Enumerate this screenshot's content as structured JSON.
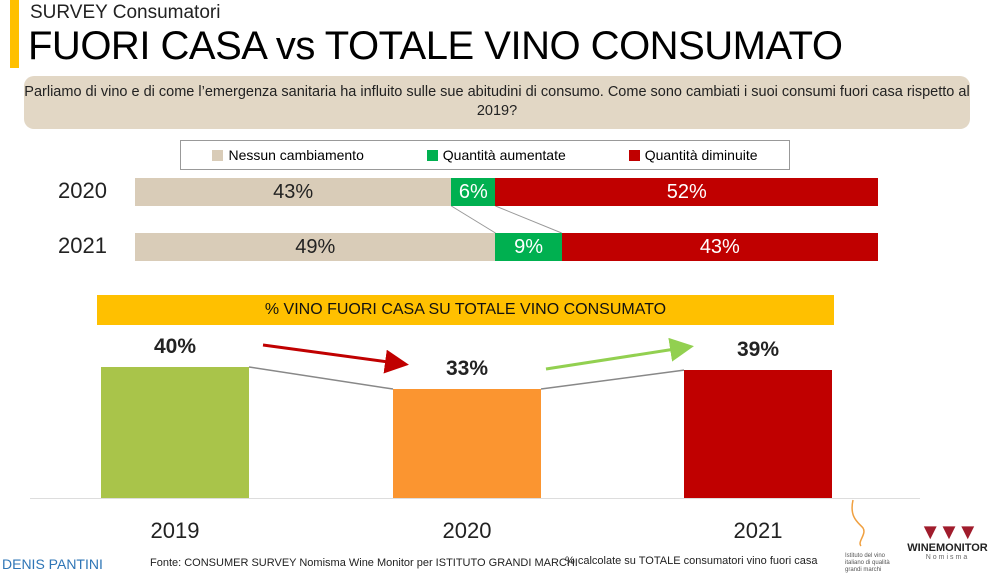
{
  "header": {
    "kicker": "SURVEY Consumatori",
    "title": "FUORI CASA vs TOTALE VINO CONSUMATO"
  },
  "question": "Parliamo di vino e di come l’emergenza sanitaria ha influito sulle sue abitudini di consumo. Come sono cambiati i suoi consumi fuori casa rispetto al 2019?",
  "colors": {
    "nessun": "#d9ccb8",
    "aumentate": "#00b050",
    "diminuite": "#c00000",
    "accent": "#ffc000",
    "b2019": "#a9c44a",
    "b2020": "#fb9530",
    "b2021": "#c00000"
  },
  "chart_data": [
    {
      "type": "bar",
      "orientation": "horizontal-stacked",
      "categories": [
        "2020",
        "2021"
      ],
      "legend_position": "top",
      "series": [
        {
          "name": "Nessun cambiamento",
          "values": [
            43,
            49
          ],
          "labels": [
            "43%",
            "49%"
          ]
        },
        {
          "name": "Quantità aumentate",
          "values": [
            6,
            9
          ],
          "labels": [
            "6%",
            "9%"
          ]
        },
        {
          "name": "Quantità diminuite",
          "values": [
            52,
            43
          ],
          "labels": [
            "52%",
            "43%"
          ]
        }
      ]
    },
    {
      "type": "bar",
      "title": "% VINO FUORI CASA SU TOTALE VINO CONSUMATO",
      "categories": [
        "2019",
        "2020",
        "2021"
      ],
      "values": [
        40,
        33,
        39
      ],
      "labels": [
        "40%",
        "33%",
        "39%"
      ]
    }
  ],
  "footer": {
    "author": "DENIS PANTINI",
    "source": "Fonte: CONSUMER SURVEY Nomisma Wine Monitor per ISTITUTO GRANDI MARCHI",
    "note": "% calcolate su TOTALE consumatori vino fuori casa",
    "logo1": "Istituto del vino italiano di qualità grandi marchi",
    "logo2": "WINEMONITOR",
    "logo2_sub": "Nomisma"
  }
}
